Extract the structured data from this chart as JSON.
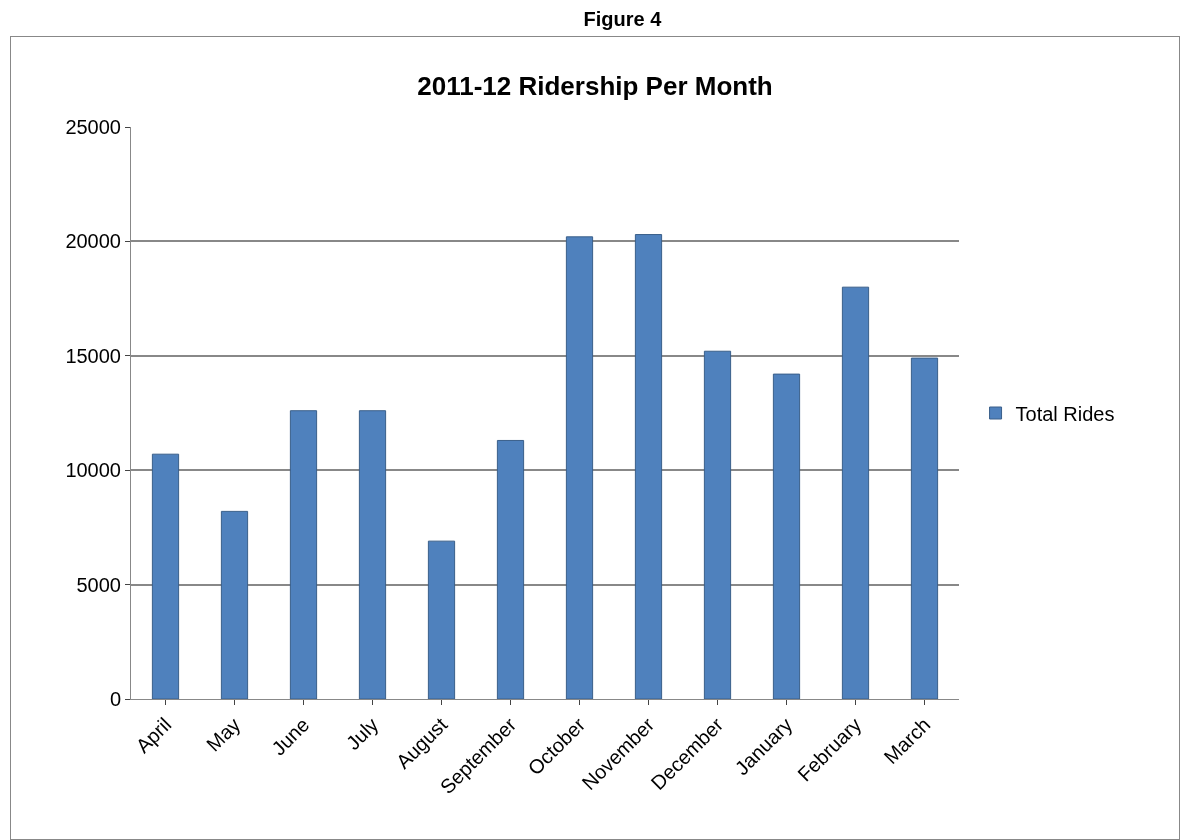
{
  "chart_data": {
    "type": "bar",
    "title": "2011-12 Ridership Per Month",
    "annotations": [
      "Figure 4"
    ],
    "categories": [
      "April",
      "May",
      "June",
      "July",
      "August",
      "September",
      "October",
      "November",
      "December",
      "January",
      "February",
      "March"
    ],
    "series": [
      {
        "name": "Total Rides",
        "color": "#4f81bd",
        "values": [
          10700,
          8200,
          12600,
          12600,
          6900,
          11300,
          20200,
          20300,
          15200,
          14200,
          18000,
          14900
        ]
      }
    ],
    "ylim": [
      0,
      25000
    ],
    "yticks": [
      0,
      5000,
      10000,
      15000,
      20000,
      25000
    ],
    "grid": "y",
    "legend": "right"
  }
}
